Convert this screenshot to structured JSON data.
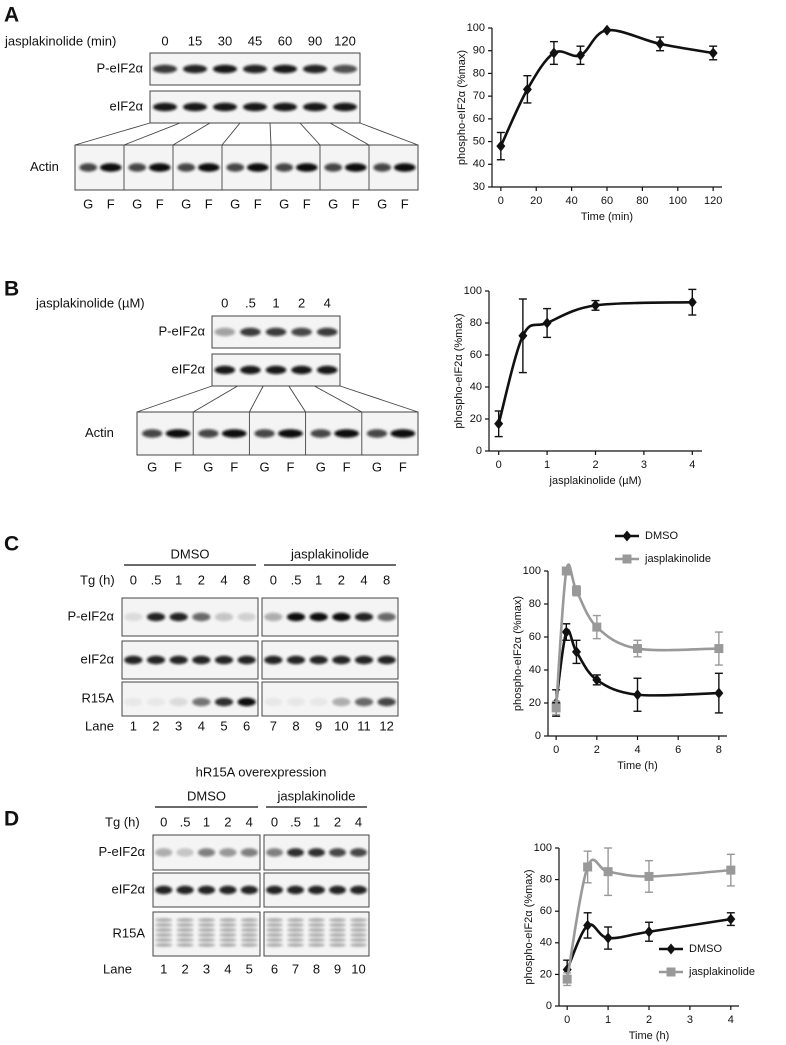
{
  "panels": [
    {
      "letter": "A",
      "treatment": "jasplakinolide (min)",
      "lanes": [
        "0",
        "15",
        "30",
        "45",
        "60",
        "90",
        "120"
      ],
      "rows": [
        "P-eIF2α",
        "eIF2α"
      ],
      "actin": "Actin",
      "fractions": [
        "G",
        "F"
      ]
    },
    {
      "letter": "B",
      "treatment": "jasplakinolide (µM)",
      "lanes": [
        "0",
        ".5",
        "1",
        "2",
        "4"
      ],
      "rows": [
        "P-eIF2α",
        "eIF2α"
      ],
      "actin": "Actin",
      "fractions": [
        "G",
        "F"
      ]
    },
    {
      "letter": "C",
      "treatment": "Tg (h)",
      "groups": [
        {
          "name": "DMSO",
          "lanes": [
            "0",
            ".5",
            "1",
            "2",
            "4",
            "8"
          ]
        },
        {
          "name": "jasplakinolide",
          "lanes": [
            "0",
            ".5",
            "1",
            "2",
            "4",
            "8"
          ]
        }
      ],
      "rows": [
        "P-eIF2α",
        "eIF2α",
        "R15A"
      ],
      "lane_label": "Lane",
      "lane_numbers": [
        "1",
        "2",
        "3",
        "4",
        "5",
        "6",
        "7",
        "8",
        "9",
        "10",
        "11",
        "12"
      ]
    },
    {
      "letter": "D",
      "header": "hR15A overexpression",
      "treatment": "Tg (h)",
      "groups": [
        {
          "name": "DMSO",
          "lanes": [
            "0",
            ".5",
            "1",
            "2",
            "4"
          ]
        },
        {
          "name": "jasplakinolide",
          "lanes": [
            "0",
            ".5",
            "1",
            "2",
            "4"
          ]
        }
      ],
      "rows": [
        "P-eIF2α",
        "eIF2α",
        "R15A"
      ],
      "lane_label": "Lane",
      "lane_numbers": [
        "1",
        "2",
        "3",
        "4",
        "5",
        "6",
        "7",
        "8",
        "9",
        "10"
      ]
    }
  ],
  "chart_data": [
    {
      "type": "line",
      "xlabel": "Time (min)",
      "ylabel": "phospho-eIF2α (%max)",
      "x": [
        0,
        15,
        30,
        45,
        60,
        90,
        120
      ],
      "values": [
        48,
        73,
        89,
        88,
        99,
        93,
        89
      ],
      "errors": [
        6,
        6,
        5,
        4,
        0,
        3,
        3
      ],
      "color": "#111111",
      "marker": "diamond",
      "xlim": [
        -5,
        125
      ],
      "xticks": [
        0,
        20,
        40,
        60,
        80,
        100,
        120
      ],
      "ylim": [
        30,
        100
      ],
      "yticks": [
        30,
        40,
        50,
        60,
        70,
        80,
        90,
        100
      ]
    },
    {
      "type": "line",
      "xlabel": "jasplakinolide (µM)",
      "ylabel": "phospho-eIF2α (%max)",
      "x": [
        0,
        0.5,
        1,
        2,
        4
      ],
      "values": [
        17,
        72,
        80,
        91,
        93
      ],
      "errors": [
        8,
        23,
        9,
        3,
        8
      ],
      "color": "#111111",
      "marker": "diamond",
      "xlim": [
        -0.2,
        4.2
      ],
      "xticks": [
        0,
        1,
        2,
        3,
        4
      ],
      "ylim": [
        0,
        100
      ],
      "yticks": [
        0,
        20,
        40,
        60,
        80,
        100
      ]
    },
    {
      "type": "line",
      "xlabel": "Time (h)",
      "ylabel": "phospho-eIF2α (%max)",
      "x": [
        0,
        0.5,
        1,
        2,
        4,
        8
      ],
      "series": [
        {
          "name": "DMSO",
          "color": "#111111",
          "marker": "diamond",
          "values": [
            20,
            63,
            51,
            34,
            25,
            26
          ],
          "errors": [
            8,
            5,
            7,
            3,
            10,
            12
          ]
        },
        {
          "name": "jasplakinolide",
          "color": "#999999",
          "marker": "square",
          "values": [
            17,
            100,
            88,
            66,
            53,
            53
          ],
          "errors": [
            4,
            0,
            3,
            7,
            5,
            10
          ]
        }
      ],
      "legend": "top-right",
      "xlim": [
        -0.4,
        8.4
      ],
      "xticks": [
        0,
        2,
        4,
        6,
        8
      ],
      "ylim": [
        0,
        100
      ],
      "yticks": [
        0,
        20,
        40,
        60,
        80,
        100
      ]
    },
    {
      "type": "line",
      "xlabel": "Time (h)",
      "ylabel": "phospho-eIF2α (%max)",
      "x": [
        0,
        0.5,
        1,
        2,
        4
      ],
      "series": [
        {
          "name": "DMSO",
          "color": "#111111",
          "marker": "diamond",
          "values": [
            23,
            51,
            43,
            47,
            55
          ],
          "errors": [
            6,
            8,
            7,
            6,
            4
          ]
        },
        {
          "name": "jasplakinolide",
          "color": "#999999",
          "marker": "square",
          "values": [
            17,
            88,
            85,
            82,
            86
          ],
          "errors": [
            4,
            10,
            15,
            10,
            10
          ]
        }
      ],
      "legend": "bottom-right",
      "xlim": [
        -0.2,
        4.2
      ],
      "xticks": [
        0,
        1,
        2,
        3,
        4
      ],
      "ylim": [
        0,
        100
      ],
      "yticks": [
        0,
        20,
        40,
        60,
        80,
        100
      ]
    }
  ]
}
